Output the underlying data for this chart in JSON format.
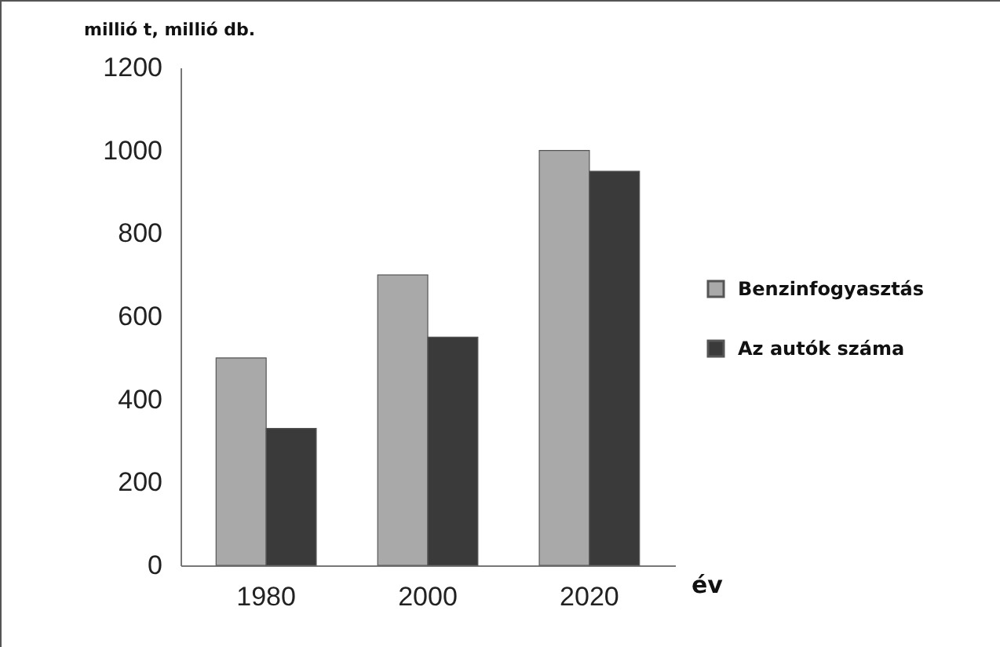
{
  "chart_data": {
    "type": "bar",
    "ylabel": "millió t, millió db.",
    "xlabel": "év",
    "categories": [
      "1980",
      "2000",
      "2020"
    ],
    "series": [
      {
        "name": "Benzinfogyasztás",
        "color": "#a9a9a9",
        "values": [
          500,
          700,
          1000
        ]
      },
      {
        "name": "Az autók száma",
        "color": "#3a3a3a",
        "values": [
          330,
          550,
          950
        ]
      }
    ],
    "ylim": [
      0,
      1200
    ],
    "yticks": [
      0,
      200,
      400,
      600,
      800,
      1000,
      1200
    ],
    "grid": false,
    "legend": "right"
  }
}
